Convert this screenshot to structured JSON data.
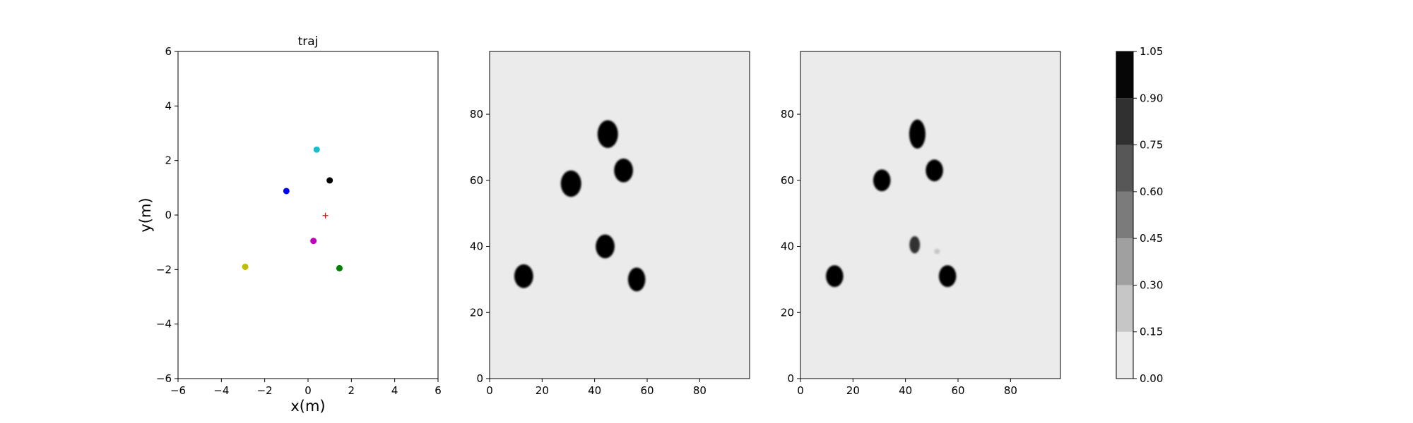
{
  "chart_data": [
    {
      "type": "scatter",
      "title": "traj",
      "xlabel": "x(m)",
      "ylabel": "y(m)",
      "xlim": [
        -6,
        6
      ],
      "ylim": [
        -6,
        6
      ],
      "xticks": [
        -6,
        -4,
        -2,
        0,
        2,
        4,
        6
      ],
      "yticks": [
        -6,
        -4,
        -2,
        0,
        2,
        4,
        6
      ],
      "grid": false,
      "points": [
        {
          "x": 0.4,
          "y": 2.4,
          "color": "#17becf",
          "marker": "circle"
        },
        {
          "x": 1.0,
          "y": 1.27,
          "color": "#000000",
          "marker": "circle"
        },
        {
          "x": -1.0,
          "y": 0.88,
          "color": "#0000ff",
          "marker": "circle"
        },
        {
          "x": 0.25,
          "y": -0.95,
          "color": "#bf00bf",
          "marker": "circle"
        },
        {
          "x": -2.9,
          "y": -1.9,
          "color": "#bfbf00",
          "marker": "circle"
        },
        {
          "x": 1.45,
          "y": -1.95,
          "color": "#008000",
          "marker": "circle"
        },
        {
          "x": 0.8,
          "y": -0.02,
          "color": "#ff0000",
          "marker": "plus"
        }
      ]
    },
    {
      "type": "heatmap",
      "title": "",
      "xlabel": "",
      "ylabel": "",
      "xlim": [
        0,
        99
      ],
      "ylim": [
        0,
        99
      ],
      "xticks": [
        0,
        20,
        40,
        60,
        80
      ],
      "yticks": [
        0,
        20,
        40,
        60,
        80
      ],
      "background_value": 0.08,
      "blobs": [
        {
          "x": 45,
          "y": 74,
          "rx": 3.9,
          "ry": 4.2,
          "value": 1.0
        },
        {
          "x": 51,
          "y": 63,
          "rx": 3.6,
          "ry": 3.6,
          "value": 1.0
        },
        {
          "x": 31,
          "y": 59,
          "rx": 3.9,
          "ry": 4.0,
          "value": 1.0
        },
        {
          "x": 44,
          "y": 40,
          "rx": 3.6,
          "ry": 3.6,
          "value": 1.0
        },
        {
          "x": 13,
          "y": 31,
          "rx": 3.6,
          "ry": 3.6,
          "value": 1.0
        },
        {
          "x": 56,
          "y": 30,
          "rx": 3.3,
          "ry": 3.6,
          "value": 1.0
        }
      ]
    },
    {
      "type": "heatmap",
      "title": "",
      "xlabel": "",
      "ylabel": "",
      "xlim": [
        0,
        99
      ],
      "ylim": [
        0,
        99
      ],
      "xticks": [
        0,
        20,
        40,
        60,
        80
      ],
      "yticks": [
        0,
        20,
        40,
        60,
        80
      ],
      "background_value": 0.08,
      "blobs": [
        {
          "x": 44.5,
          "y": 74,
          "rx": 3.1,
          "ry": 4.4,
          "value": 1.0
        },
        {
          "x": 51,
          "y": 63,
          "rx": 3.3,
          "ry": 3.3,
          "value": 1.0
        },
        {
          "x": 31,
          "y": 60,
          "rx": 3.3,
          "ry": 3.3,
          "value": 1.0
        },
        {
          "x": 43.5,
          "y": 40.5,
          "rx": 2.0,
          "ry": 2.6,
          "value": 0.8
        },
        {
          "x": 52,
          "y": 38.5,
          "rx": 1.1,
          "ry": 0.8,
          "value": 0.25
        },
        {
          "x": 13,
          "y": 31,
          "rx": 3.3,
          "ry": 3.3,
          "value": 1.0
        },
        {
          "x": 56,
          "y": 31,
          "rx": 3.3,
          "ry": 3.3,
          "value": 1.0
        }
      ]
    }
  ],
  "colorbar": {
    "ticks": [
      "0.00",
      "0.15",
      "0.30",
      "0.45",
      "0.60",
      "0.75",
      "0.90",
      "1.05"
    ],
    "levels": [
      0.0,
      0.15,
      0.3,
      0.45,
      0.6,
      0.75,
      0.9,
      1.05
    ],
    "colors": [
      "#ebebeb",
      "#c6c6c6",
      "#a0a0a0",
      "#7b7b7b",
      "#575757",
      "#303030",
      "#060606"
    ]
  }
}
